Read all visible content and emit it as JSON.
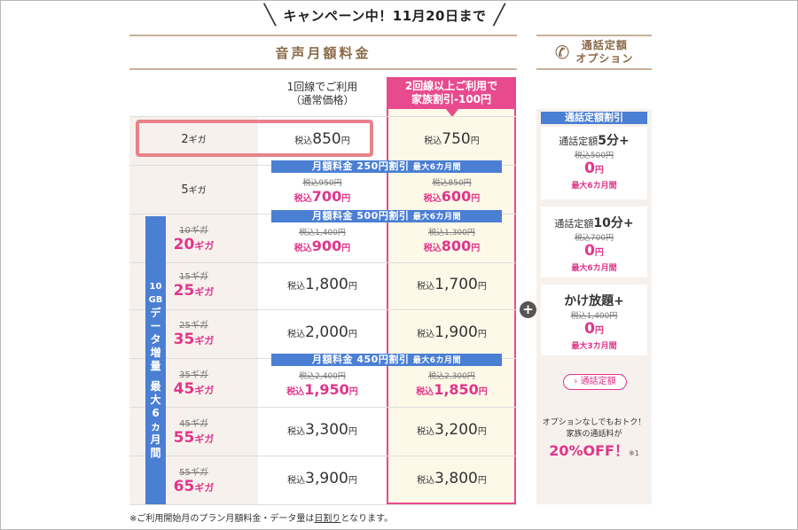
{
  "campaign": "キャンペーン中！11月20日まで",
  "section_title": "音声月額料金",
  "col_normal": [
    "1回線でご利用",
    "（通常価格）"
  ],
  "col_family": [
    "2回線以上ご利用で",
    "家族割引-100円"
  ],
  "tax": "税込",
  "yen": "円",
  "gb_side_label": "10GBデータ増量 最大6ヵ月間",
  "banners": {
    "b1": {
      "main": "月額料金 250円割引",
      "max": "最大6カ月間"
    },
    "b2": {
      "main": "月額料金 500円割引",
      "max": "最大6カ月間"
    },
    "b3": {
      "main": "月額料金 450円割引",
      "max": "最大6カ月間"
    }
  },
  "rows": [
    {
      "old_cap": "",
      "cap": "2",
      "normal_old": "",
      "normal": "850",
      "family_old": "",
      "family": "750"
    },
    {
      "old_cap": "",
      "cap": "5",
      "normal_old": "税込950円",
      "normal": "700",
      "family_old": "税込850円",
      "family": "600"
    },
    {
      "old_cap": "10ギガ",
      "cap": "20",
      "normal_old": "税込1,400円",
      "normal": "900",
      "family_old": "税込1,300円",
      "family": "800"
    },
    {
      "old_cap": "15ギガ",
      "cap": "25",
      "normal_old": "",
      "normal": "1,800",
      "family_old": "",
      "family": "1,700"
    },
    {
      "old_cap": "25ギガ",
      "cap": "35",
      "normal_old": "",
      "normal": "2,000",
      "family_old": "",
      "family": "1,900"
    },
    {
      "old_cap": "35ギガ",
      "cap": "45",
      "normal_old": "税込2,400円",
      "normal": "1,950",
      "family_old": "税込2,300円",
      "family": "1,850"
    },
    {
      "old_cap": "45ギガ",
      "cap": "55",
      "normal_old": "",
      "normal": "3,300",
      "family_old": "",
      "family": "3,200"
    },
    {
      "old_cap": "55ギガ",
      "cap": "65",
      "normal_old": "",
      "normal": "3,900",
      "family_old": "",
      "family": "3,800"
    }
  ],
  "giga": "ギガ",
  "option": {
    "title": [
      "通話定額",
      "オプション"
    ],
    "discount_header": "通話定額割引",
    "cards": [
      {
        "name_prefix": "通話定額",
        "name_bold": "5分+",
        "old": "税込500円",
        "price": "0",
        "note": "最大6カ月間"
      },
      {
        "name_prefix": "通話定額",
        "name_bold": "10分+",
        "old": "税込700円",
        "price": "0",
        "note": "最大6カ月間"
      },
      {
        "name_prefix": "",
        "name_bold": "かけ放題+",
        "old": "税込1,400円",
        "price": "0",
        "note": "最大3カ月間"
      }
    ],
    "button": "› 通話定額",
    "promo_line1": "オプションなしでもおトク！",
    "promo_line2": "家族の通話料が",
    "promo_pct": "20%OFF！",
    "promo_note": "※1"
  },
  "footnote": {
    "pre": "※ご利用開始月のプラン月額料金・データ量は",
    "link": "日割り",
    "post": "となります。"
  },
  "colors": {
    "pink": "#e84a8e",
    "blue": "#4a7fd3",
    "brown": "#8b6b4a",
    "beige": "#f6f1ed"
  },
  "icons": {
    "plus": "plus-circle-icon",
    "phone": "phone-icon"
  }
}
